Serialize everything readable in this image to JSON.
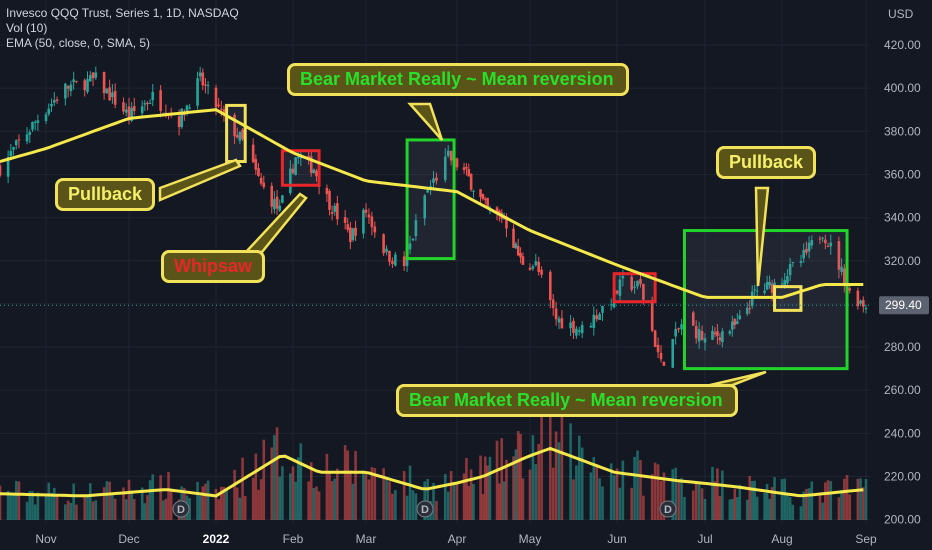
{
  "header": {
    "title": "Invesco QQQ Trust, Series 1, 1D, NASDAQ",
    "vol": "Vol (10)",
    "ema": "EMA (50, close, 0, SMA, 5)"
  },
  "colors": {
    "background": "#141823",
    "up": "#26a69a",
    "down": "#ef5350",
    "ema": "#f5e84a",
    "box_green": "#22d42a",
    "box_yellow": "#f2e25a",
    "box_red": "#e8262a"
  },
  "callouts": {
    "bear_top": "Bear Market Really ~ Mean reversion",
    "bear_bottom": "Bear Market Really ~ Mean reversion",
    "pullback_left": "Pullback",
    "pullback_right": "Pullback",
    "whipsaw": "Whipsaw"
  },
  "chart_data": {
    "type": "candlestick",
    "currency": "USD",
    "last_price_label": "299.40",
    "y_ticks": [
      "420.00",
      "400.00",
      "380.00",
      "360.00",
      "340.00",
      "320.00",
      "300.00",
      "280.00",
      "260.00",
      "240.00",
      "220.00",
      "200.00"
    ],
    "ylim": [
      200,
      425
    ],
    "x_ticks": [
      "Nov",
      "Dec",
      "2022",
      "Feb",
      "Mar",
      "Apr",
      "May",
      "Jun",
      "Jul",
      "Aug",
      "Sep"
    ],
    "x_dates": [
      "2021-10-15",
      "2021-11-01",
      "2021-12-01",
      "2022-01-03",
      "2022-02-01",
      "2022-03-01",
      "2022-04-01",
      "2022-05-02",
      "2022-06-01",
      "2022-07-01",
      "2022-08-01",
      "2022-09-01"
    ],
    "price_anchors": [
      {
        "date": "2021-10-15",
        "close": 363
      },
      {
        "date": "2021-10-29",
        "close": 386
      },
      {
        "date": "2021-11-08",
        "close": 400
      },
      {
        "date": "2021-11-19",
        "close": 404
      },
      {
        "date": "2021-12-01",
        "close": 387
      },
      {
        "date": "2021-12-10",
        "close": 396
      },
      {
        "date": "2021-12-20",
        "close": 385
      },
      {
        "date": "2021-12-28",
        "close": 404
      },
      {
        "date": "2022-01-05",
        "close": 388
      },
      {
        "date": "2022-01-13",
        "close": 375
      },
      {
        "date": "2022-01-20",
        "close": 355
      },
      {
        "date": "2022-01-27",
        "close": 343
      },
      {
        "date": "2022-02-02",
        "close": 368
      },
      {
        "date": "2022-02-09",
        "close": 363
      },
      {
        "date": "2022-02-14",
        "close": 349
      },
      {
        "date": "2022-02-23",
        "close": 331
      },
      {
        "date": "2022-03-01",
        "close": 343
      },
      {
        "date": "2022-03-08",
        "close": 323
      },
      {
        "date": "2022-03-14",
        "close": 318
      },
      {
        "date": "2022-03-21",
        "close": 350
      },
      {
        "date": "2022-03-29",
        "close": 368
      },
      {
        "date": "2022-04-05",
        "close": 360
      },
      {
        "date": "2022-04-14",
        "close": 343
      },
      {
        "date": "2022-04-21",
        "close": 340
      },
      {
        "date": "2022-04-28",
        "close": 320
      },
      {
        "date": "2022-05-04",
        "close": 318
      },
      {
        "date": "2022-05-11",
        "close": 293
      },
      {
        "date": "2022-05-20",
        "close": 288
      },
      {
        "date": "2022-05-31",
        "close": 304
      },
      {
        "date": "2022-06-03",
        "close": 310
      },
      {
        "date": "2022-06-09",
        "close": 308
      },
      {
        "date": "2022-06-16",
        "close": 272
      },
      {
        "date": "2022-06-24",
        "close": 293
      },
      {
        "date": "2022-07-01",
        "close": 283
      },
      {
        "date": "2022-07-14",
        "close": 290
      },
      {
        "date": "2022-07-21",
        "close": 305
      },
      {
        "date": "2022-07-29",
        "close": 309
      },
      {
        "date": "2022-08-08",
        "close": 320
      },
      {
        "date": "2022-08-16",
        "close": 334
      },
      {
        "date": "2022-08-22",
        "close": 318
      },
      {
        "date": "2022-08-26",
        "close": 305
      },
      {
        "date": "2022-09-01",
        "close": 299.4
      }
    ],
    "ema_anchors": [
      {
        "date": "2021-10-15",
        "value": 366
      },
      {
        "date": "2021-11-01",
        "value": 372
      },
      {
        "date": "2021-12-01",
        "value": 386
      },
      {
        "date": "2022-01-03",
        "value": 390
      },
      {
        "date": "2022-02-01",
        "value": 370
      },
      {
        "date": "2022-03-01",
        "value": 357
      },
      {
        "date": "2022-04-01",
        "value": 352
      },
      {
        "date": "2022-05-02",
        "value": 334
      },
      {
        "date": "2022-06-01",
        "value": 318
      },
      {
        "date": "2022-07-01",
        "value": 303
      },
      {
        "date": "2022-08-01",
        "value": 303
      },
      {
        "date": "2022-08-16",
        "value": 309
      },
      {
        "date": "2022-09-01",
        "value": 309
      }
    ],
    "volume_ma_anchors": [
      {
        "date": "2021-10-15",
        "value": 212
      },
      {
        "date": "2021-11-15",
        "value": 211
      },
      {
        "date": "2021-12-15",
        "value": 214
      },
      {
        "date": "2022-01-03",
        "value": 211
      },
      {
        "date": "2022-01-28",
        "value": 230
      },
      {
        "date": "2022-02-11",
        "value": 222
      },
      {
        "date": "2022-03-01",
        "value": 222
      },
      {
        "date": "2022-03-21",
        "value": 214
      },
      {
        "date": "2022-04-12",
        "value": 220
      },
      {
        "date": "2022-05-09",
        "value": 233
      },
      {
        "date": "2022-05-31",
        "value": 222
      },
      {
        "date": "2022-06-22",
        "value": 218
      },
      {
        "date": "2022-07-15",
        "value": 215
      },
      {
        "date": "2022-08-08",
        "value": 211
      },
      {
        "date": "2022-09-01",
        "value": 214
      }
    ],
    "highlight_boxes": [
      {
        "color": "yellow",
        "from": "2022-01-07",
        "to": "2022-01-14",
        "low": 366,
        "high": 392
      },
      {
        "color": "red",
        "from": "2022-01-28",
        "to": "2022-02-11",
        "low": 355,
        "high": 371
      },
      {
        "color": "green",
        "from": "2022-03-15",
        "to": "2022-03-31",
        "low": 321,
        "high": 376
      },
      {
        "color": "red",
        "from": "2022-05-31",
        "to": "2022-06-14",
        "low": 301,
        "high": 314
      },
      {
        "color": "green",
        "from": "2022-06-24",
        "to": "2022-08-25",
        "low": 270,
        "high": 334
      },
      {
        "color": "yellow",
        "from": "2022-07-29",
        "to": "2022-08-08",
        "low": 297,
        "high": 308
      }
    ]
  }
}
